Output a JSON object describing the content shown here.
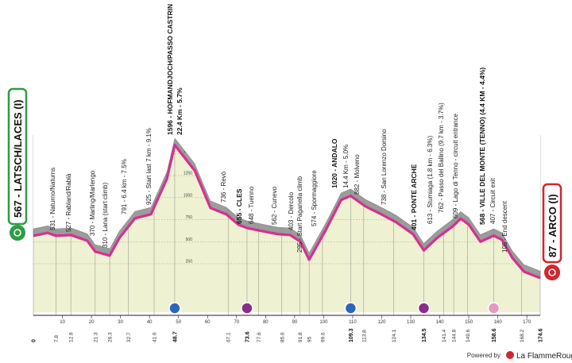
{
  "chart_data": {
    "type": "area",
    "start_label": "567 - LATSCH/LACES (I)",
    "finish_label": "87 - ARCO (I)",
    "x": [
      0,
      4.9,
      7.7,
      13,
      18.6,
      21.3,
      26.3,
      29.6,
      35,
      40.5,
      46,
      48.7,
      55.6,
      61,
      66.5,
      70.6,
      73.6,
      80,
      84.3,
      88.4,
      92,
      95.0,
      100.7,
      106,
      109.3,
      114.4,
      119.9,
      125,
      130.8,
      134.5,
      139,
      144.5,
      147.2,
      150,
      154,
      158.6,
      161.5,
      165,
      169,
      174.6
    ],
    "series": [
      {
        "color": "#d4318f",
        "values": [
          567,
          600,
          567,
          575,
          510,
          387,
          342,
          540,
          765,
          810,
          1215,
          1596,
          1306,
          883,
          810,
          694,
          655,
          612,
          585,
          576,
          500,
          295,
          630,
          973,
          1020,
          900,
          810,
          720,
          585,
          401,
          540,
          675,
          762,
          694,
          500,
          568,
          520,
          315,
          160,
          87
        ]
      }
    ],
    "xlim": [
      0,
      174.6
    ],
    "ylim": [
      -300,
      2900
    ],
    "yticks": [
      250,
      500,
      750,
      1000,
      1250,
      1500
    ],
    "xticks": [
      10,
      20,
      30,
      40,
      50,
      60,
      70,
      80,
      90,
      100,
      110,
      120,
      130,
      140,
      150,
      160,
      170
    ],
    "point_ticks": [
      0.0,
      7.8,
      12.9,
      21.3,
      26.3,
      32.7,
      41.6,
      48.7,
      67.1,
      73.6,
      77.6,
      85.6,
      91.8,
      95.0,
      99.6,
      109.3,
      113.8,
      124.1,
      134.5,
      141.4,
      144.8,
      149.6,
      158.6,
      168.2,
      174.6
    ],
    "annotations": [
      "531 - Naturno/Naturns",
      "527 - Rabland/Rablà",
      "370 - Marling/Marlengo",
      "310 - Lana (start climb)",
      "791 - 6.4 km - 7.5%",
      "925 - Start last 7 km - 9.1%",
      "1596 - HOFMANDJOCH/PASSO CASTRIN",
      "22.4 Km - 5.7%",
      "736 - Revò",
      "655 - CLES",
      "648 - Tuenno",
      "562 - Cunevo",
      "403 - Dercolo",
      "295 - Start Paganella climb",
      "574 - Spormaggiore",
      "1020 - ANDALO",
      "14.4 Km - 5.0%",
      "882 - Molveno",
      "738 - San Lorenzo Dorsino",
      "401 - PONTE ARCHE",
      "613 - Stumiaga (1.8 km - 6.3%)",
      "762 - Passo del Ballino (9.7 km - 3.7%)",
      "609 - Lago di Tenno - circuit entrance",
      "568 - VILLE DEL MONTE (TENNO) (4.4 KM - 4.4%)",
      "407 - Circuit exit",
      "105 - End descent"
    ],
    "footer": {
      "powered": "Powered by",
      "brand": "La FlammeRouge"
    }
  }
}
